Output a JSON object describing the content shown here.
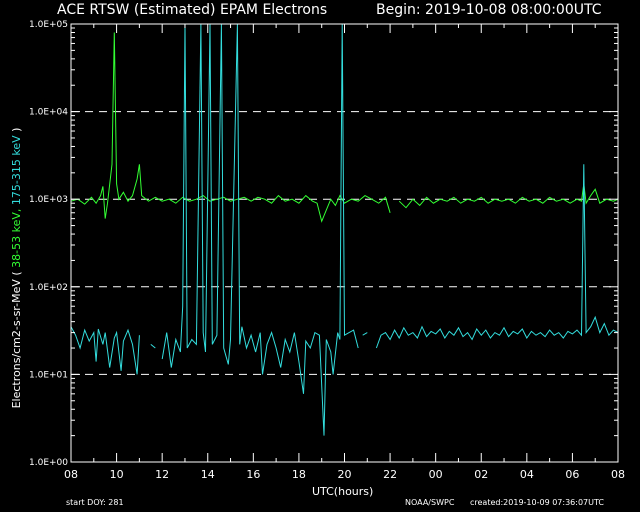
{
  "chart_data": {
    "type": "line",
    "title": "ACE RTSW (Estimated) EPAM Electrons",
    "begin_label": "Begin: 2019-10-08 08:00:00UTC",
    "xlabel": "UTC(hours)",
    "ylabel_parts": [
      {
        "text": "Electrons/cm2-s-sr-MeV (",
        "color": "#ffffff"
      },
      {
        "text": " 38-53 keV, ",
        "color": "#33ff33"
      },
      {
        "text": " 175-315 keV ",
        "color": "#33dddd"
      },
      {
        "text": ")",
        "color": "#ffffff"
      }
    ],
    "y_scale": "log",
    "ylim": [
      1,
      100000
    ],
    "y_ticks": [
      1,
      10,
      100,
      1000,
      10000,
      100000
    ],
    "y_tick_labels": [
      "1.0E+00",
      "1.0E+01",
      "1.0E+02",
      "1.0E+03",
      "1.0E+04",
      "1.0E+05"
    ],
    "dashed_gridlines_at": [
      10,
      100,
      1000,
      10000
    ],
    "xlim": [
      0,
      24
    ],
    "x_ticks": [
      0,
      2,
      4,
      6,
      8,
      10,
      12,
      14,
      16,
      18,
      20,
      22,
      24
    ],
    "x_tick_labels": [
      "08",
      "10",
      "12",
      "14",
      "16",
      "18",
      "20",
      "22",
      "00",
      "02",
      "04",
      "06",
      "08"
    ],
    "series": [
      {
        "color": "#33ff33",
        "segments": [
          [
            [
              0.0,
              950
            ],
            [
              0.3,
              1000
            ],
            [
              0.6,
              880
            ],
            [
              0.9,
              1050
            ],
            [
              1.1,
              900
            ],
            [
              1.3,
              1100
            ],
            [
              1.4,
              1400
            ],
            [
              1.5,
              600
            ],
            [
              1.6,
              900
            ],
            [
              1.8,
              2500
            ],
            [
              1.9,
              80000
            ],
            [
              2.0,
              1500
            ],
            [
              2.1,
              1000
            ],
            [
              2.3,
              1200
            ],
            [
              2.5,
              950
            ],
            [
              2.7,
              1100
            ],
            [
              2.9,
              1700
            ],
            [
              3.0,
              2500
            ],
            [
              3.1,
              1100
            ],
            [
              3.4,
              950
            ],
            [
              3.7,
              1050
            ],
            [
              4.0,
              950
            ],
            [
              4.3,
              1000
            ],
            [
              4.6,
              900
            ],
            [
              4.9,
              1050
            ],
            [
              5.2,
              950
            ],
            [
              5.5,
              1000
            ],
            [
              5.8,
              1100
            ],
            [
              6.1,
              950
            ],
            [
              6.4,
              1000
            ],
            [
              6.7,
              1050
            ],
            [
              7.0,
              950
            ],
            [
              7.3,
              1000
            ],
            [
              7.6,
              1050
            ],
            [
              7.9,
              950
            ],
            [
              8.2,
              1050
            ],
            [
              8.5,
              1000
            ],
            [
              8.8,
              900
            ],
            [
              9.1,
              1100
            ],
            [
              9.4,
              950
            ],
            [
              9.7,
              1000
            ],
            [
              10.0,
              900
            ],
            [
              10.3,
              1100
            ],
            [
              10.6,
              950
            ],
            [
              10.8,
              900
            ],
            [
              11.0,
              560
            ],
            [
              11.2,
              750
            ],
            [
              11.4,
              1000
            ],
            [
              11.6,
              850
            ],
            [
              11.8,
              1100
            ],
            [
              12.0,
              900
            ],
            [
              12.3,
              1000
            ],
            [
              12.6,
              950
            ],
            [
              12.9,
              1100
            ],
            [
              13.2,
              1000
            ],
            [
              13.5,
              900
            ],
            [
              13.8,
              1050
            ],
            [
              14.0,
              700
            ]
          ],
          [
            [
              14.4,
              950
            ],
            [
              14.7,
              800
            ],
            [
              15.0,
              1000
            ],
            [
              15.3,
              850
            ],
            [
              15.6,
              1050
            ],
            [
              15.9,
              900
            ],
            [
              16.2,
              1000
            ],
            [
              16.5,
              950
            ],
            [
              16.8,
              1050
            ],
            [
              17.1,
              900
            ],
            [
              17.4,
              1000
            ],
            [
              17.7,
              950
            ],
            [
              18.0,
              1050
            ],
            [
              18.3,
              900
            ],
            [
              18.6,
              1000
            ],
            [
              18.9,
              950
            ],
            [
              19.2,
              1000
            ],
            [
              19.5,
              900
            ],
            [
              19.8,
              1050
            ],
            [
              20.1,
              950
            ],
            [
              20.4,
              1000
            ],
            [
              20.7,
              900
            ],
            [
              21.0,
              1050
            ],
            [
              21.3,
              950
            ],
            [
              21.6,
              1000
            ],
            [
              21.9,
              900
            ],
            [
              22.2,
              1000
            ],
            [
              22.4,
              950
            ],
            [
              22.5,
              1500
            ],
            [
              22.6,
              900
            ],
            [
              22.8,
              1100
            ],
            [
              23.0,
              1300
            ],
            [
              23.2,
              900
            ],
            [
              23.5,
              1000
            ],
            [
              23.8,
              950
            ],
            [
              24.0,
              1000
            ]
          ]
        ]
      },
      {
        "color": "#33dddd",
        "segments": [
          [
            [
              0.0,
              35
            ],
            [
              0.2,
              28
            ],
            [
              0.4,
              20
            ],
            [
              0.6,
              32
            ],
            [
              0.8,
              24
            ],
            [
              1.0,
              30
            ],
            [
              1.1,
              14
            ],
            [
              1.2,
              33
            ],
            [
              1.4,
              22
            ],
            [
              1.5,
              30
            ],
            [
              1.7,
              12
            ],
            [
              1.9,
              26
            ],
            [
              2.0,
              30
            ],
            [
              2.2,
              11
            ],
            [
              2.3,
              24
            ],
            [
              2.5,
              32
            ],
            [
              2.7,
              22
            ],
            [
              2.9,
              10
            ],
            [
              3.0,
              28
            ]
          ],
          [
            [
              3.5,
              22
            ],
            [
              3.7,
              20
            ]
          ],
          [
            [
              4.0,
              15
            ],
            [
              4.2,
              30
            ],
            [
              4.4,
              12
            ],
            [
              4.6,
              25
            ],
            [
              4.8,
              18
            ],
            [
              4.9,
              60
            ],
            [
              5.0,
              100000
            ],
            [
              5.1,
              20
            ],
            [
              5.3,
              25
            ],
            [
              5.5,
              22
            ],
            [
              5.7,
              100000
            ],
            [
              5.8,
              30
            ],
            [
              5.9,
              18
            ],
            [
              6.1,
              100000
            ],
            [
              6.2,
              22
            ],
            [
              6.4,
              28
            ],
            [
              6.6,
              100000
            ],
            [
              6.7,
              20
            ],
            [
              6.9,
              13
            ],
            [
              7.0,
              25
            ],
            [
              7.3,
              100000
            ],
            [
              7.4,
              22
            ],
            [
              7.5,
              35
            ],
            [
              7.7,
              20
            ],
            [
              7.9,
              28
            ],
            [
              8.1,
              18
            ],
            [
              8.3,
              30
            ],
            [
              8.4,
              10
            ],
            [
              8.6,
              22
            ],
            [
              8.8,
              30
            ],
            [
              9.0,
              20
            ],
            [
              9.2,
              12
            ],
            [
              9.4,
              25
            ],
            [
              9.6,
              18
            ],
            [
              9.8,
              30
            ],
            [
              10.0,
              14
            ],
            [
              10.2,
              6
            ],
            [
              10.3,
              24
            ],
            [
              10.5,
              20
            ],
            [
              10.7,
              30
            ],
            [
              10.9,
              28
            ],
            [
              11.1,
              2
            ],
            [
              11.2,
              25
            ],
            [
              11.4,
              18
            ],
            [
              11.5,
              10
            ],
            [
              11.7,
              30
            ],
            [
              11.8,
              25
            ],
            [
              11.9,
              100000
            ],
            [
              12.0,
              28
            ],
            [
              12.2,
              30
            ],
            [
              12.4,
              32
            ],
            [
              12.6,
              20
            ]
          ],
          [
            [
              12.8,
              28
            ],
            [
              13.0,
              30
            ]
          ],
          [
            [
              13.4,
              20
            ],
            [
              13.6,
              28
            ],
            [
              13.8,
              30
            ],
            [
              14.0,
              25
            ],
            [
              14.2,
              32
            ],
            [
              14.4,
              26
            ],
            [
              14.6,
              34
            ],
            [
              14.8,
              28
            ],
            [
              15.0,
              30
            ],
            [
              15.2,
              26
            ],
            [
              15.4,
              35
            ],
            [
              15.6,
              27
            ],
            [
              15.8,
              31
            ],
            [
              16.0,
              29
            ],
            [
              16.2,
              33
            ],
            [
              16.4,
              26
            ],
            [
              16.6,
              31
            ],
            [
              16.8,
              28
            ],
            [
              17.0,
              34
            ],
            [
              17.2,
              27
            ],
            [
              17.4,
              30
            ],
            [
              17.6,
              25
            ],
            [
              17.8,
              33
            ],
            [
              18.0,
              28
            ],
            [
              18.2,
              32
            ],
            [
              18.4,
              26
            ],
            [
              18.6,
              30
            ],
            [
              18.8,
              28
            ],
            [
              19.0,
              34
            ],
            [
              19.2,
              27
            ],
            [
              19.4,
              31
            ],
            [
              19.6,
              29
            ],
            [
              19.8,
              33
            ],
            [
              20.0,
              26
            ],
            [
              20.2,
              31
            ],
            [
              20.4,
              28
            ],
            [
              20.6,
              30
            ],
            [
              20.8,
              27
            ],
            [
              21.0,
              32
            ],
            [
              21.2,
              28
            ],
            [
              21.4,
              30
            ],
            [
              21.6,
              26
            ],
            [
              21.8,
              31
            ],
            [
              22.0,
              29
            ],
            [
              22.2,
              32
            ],
            [
              22.4,
              28
            ],
            [
              22.5,
              2500
            ],
            [
              22.6,
              30
            ],
            [
              22.8,
              35
            ],
            [
              23.0,
              45
            ],
            [
              23.2,
              30
            ],
            [
              23.4,
              38
            ],
            [
              23.6,
              28
            ],
            [
              23.8,
              32
            ],
            [
              24.0,
              30
            ]
          ]
        ]
      }
    ]
  },
  "footer": {
    "start_doy": "start DOY:  281",
    "source": "NOAA/SWPC",
    "created": "created:2019-10-09 07:36:07UTC"
  }
}
